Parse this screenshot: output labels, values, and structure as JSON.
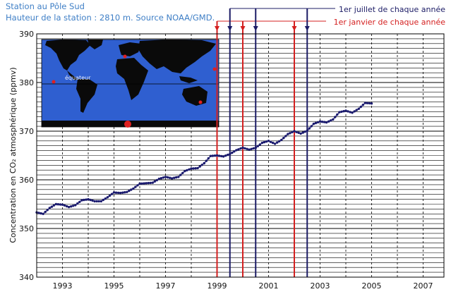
{
  "header": {
    "line1": "Station au Pôle Sud",
    "line2": "Hauteur de la station : 2810 m. Source NOAA/GMD."
  },
  "map": {
    "equator_label": "équateur"
  },
  "chart_data": {
    "type": "scatter",
    "ylabel": "Concentration en CO₂ atmosphérique (ppmv)",
    "ylim": [
      340,
      390
    ],
    "yticks": [
      340,
      350,
      360,
      370,
      380,
      390
    ],
    "xlim": [
      1992,
      2007.3
    ],
    "xticks": [
      1993,
      1995,
      1997,
      1999,
      2001,
      2003,
      2005,
      2007
    ],
    "grid": true,
    "colors": {
      "series": "#1a1a6e",
      "july": "#1c1c66",
      "january": "#d42020"
    },
    "legend": {
      "july_label": "1er juillet de chaque année",
      "january_label": "1er janvier de chaque année"
    },
    "january_lines": [
      1999,
      2000,
      2002
    ],
    "july_lines": [
      1999.5,
      2000.5,
      2002.5
    ],
    "series": [
      {
        "x": [
          1992.0,
          1992.25,
          1992.5,
          1992.75,
          1993.0,
          1993.25,
          1993.5,
          1993.75,
          1994.0,
          1994.25,
          1994.5,
          1994.75,
          1995.0,
          1995.25,
          1995.5,
          1995.75,
          1996.0,
          1996.25,
          1996.5,
          1996.75,
          1997.0,
          1997.25,
          1997.5,
          1997.75,
          1998.0,
          1998.25,
          1998.5,
          1998.75,
          1999.0,
          1999.25,
          1999.5,
          1999.75,
          2000.0,
          2000.25,
          2000.5,
          2000.75,
          2001.0,
          2001.25,
          2001.5,
          2001.75,
          2002.0,
          2002.25,
          2002.5,
          2002.75,
          2003.0,
          2003.25,
          2003.5,
          2003.75,
          2004.0,
          2004.25,
          2004.5,
          2004.75,
          2005.0
        ],
        "y": [
          353.3,
          353.0,
          354.2,
          355.0,
          354.9,
          354.4,
          354.8,
          355.8,
          356.0,
          355.6,
          355.6,
          356.4,
          357.4,
          357.3,
          357.5,
          358.2,
          359.2,
          359.3,
          359.4,
          360.2,
          360.6,
          360.3,
          360.6,
          361.8,
          362.3,
          362.4,
          363.4,
          364.9,
          365.0,
          364.8,
          365.3,
          366.1,
          366.6,
          366.2,
          366.6,
          367.6,
          368.0,
          367.4,
          368.2,
          369.4,
          370.0,
          369.5,
          370.1,
          371.5,
          372.0,
          371.8,
          372.4,
          373.9,
          374.2,
          373.8,
          374.6,
          375.8,
          375.7
        ]
      }
    ]
  }
}
